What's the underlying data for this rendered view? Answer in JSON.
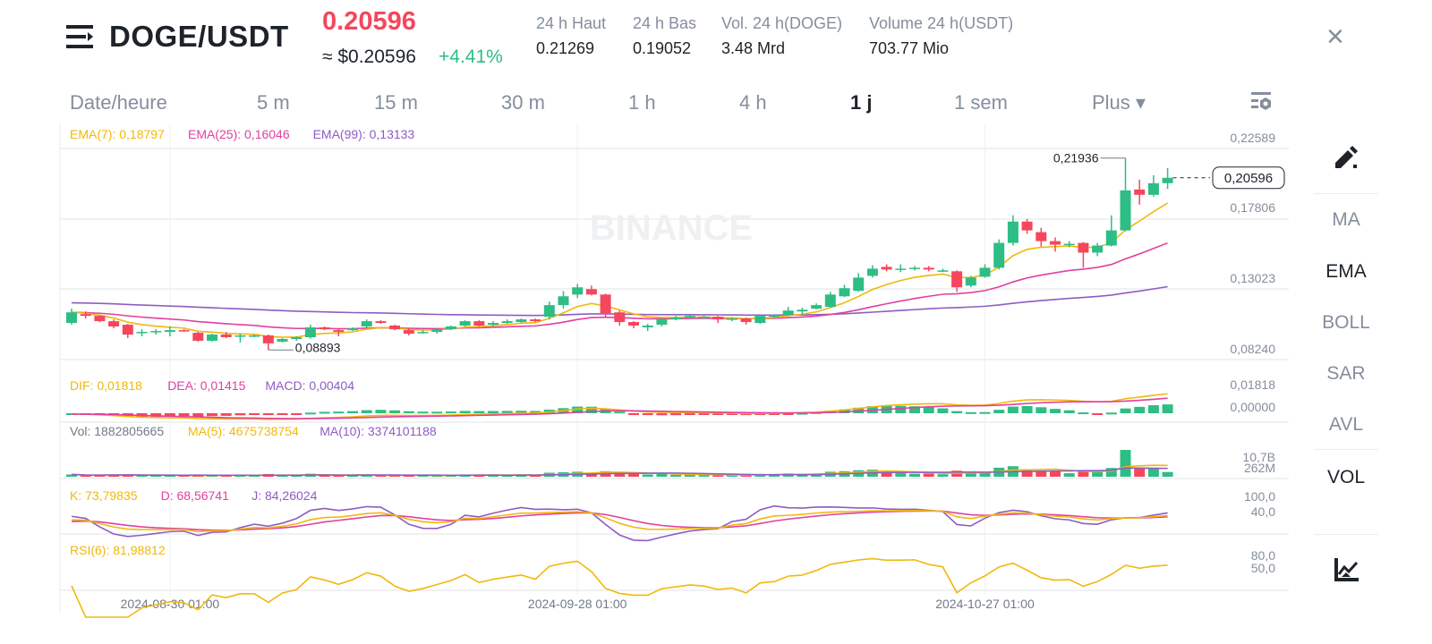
{
  "header": {
    "pair": "DOGE/USDT",
    "last_price": "0.20596",
    "usd_price": "≈ $0.20596",
    "change": "+4.41%",
    "stats": [
      {
        "label": "24 h Haut",
        "value": "0.21269"
      },
      {
        "label": "24 h Bas",
        "value": "0.19052"
      },
      {
        "label": "Vol. 24 h(DOGE)",
        "value": "3.48 Mrd"
      },
      {
        "label": "Volume 24 h(USDT)",
        "value": "703.77 Mio"
      }
    ],
    "close_icon": "×"
  },
  "timeframes": [
    {
      "label": "Date/heure"
    },
    {
      "label": "5 m"
    },
    {
      "label": "15 m"
    },
    {
      "label": "30 m"
    },
    {
      "label": "1 h"
    },
    {
      "label": "4 h"
    },
    {
      "label": "1 j",
      "active": true
    },
    {
      "label": "1 sem"
    },
    {
      "label": "Plus ▾"
    }
  ],
  "sidebar": {
    "items": [
      {
        "label": "MA"
      },
      {
        "label": "EMA",
        "active": true
      },
      {
        "label": "BOLL"
      },
      {
        "label": "SAR"
      },
      {
        "label": "AVL"
      },
      {
        "label": "VOL",
        "active": true
      }
    ]
  },
  "colors": {
    "up": "#2ebd85",
    "down": "#f6465d",
    "yellow": "#f0b90b",
    "pink": "#e040a0",
    "purple": "#8e5cc4",
    "grid": "#f0f1f3"
  },
  "chart_data": {
    "type": "candlestick",
    "watermark": "BINANCE",
    "main": {
      "legend": {
        "ema7": "EMA(7): 0,18797",
        "ema25": "EMA(25): 0,16046",
        "ema99": "EMA(99): 0,13133"
      },
      "y_ticks": [
        "0,22589",
        "0,17806",
        "0,13023",
        "0,08240"
      ],
      "y_range": [
        0.0824,
        0.22589
      ],
      "high_label": "0,21936",
      "low_label": "0,08893",
      "current_label": "0,20596"
    },
    "macd": {
      "legend": {
        "dif": "DIF: 0,01818",
        "dea": "DEA: 0,01415",
        "macd": "MACD: 0,00404"
      },
      "y_ticks": [
        "0,01818",
        "0,00000"
      ]
    },
    "vol": {
      "legend": {
        "vol": "Vol: 1882805665",
        "ma5": "MA(5): 4675738754",
        "ma10": "MA(10): 3374101188"
      },
      "y_ticks": [
        "10,7B",
        "262M"
      ]
    },
    "kdj": {
      "legend": {
        "k": "K: 73,79835",
        "d": "D: 68,56741",
        "j": "J: 84,26024"
      },
      "y_ticks": [
        "100,0",
        "40,0"
      ]
    },
    "rsi": {
      "legend": {
        "rsi": "RSI(6): 81,98812"
      },
      "y_ticks": [
        "80,0",
        "50,0"
      ]
    },
    "x_ticks": [
      {
        "label": "2024-08-30 01:00",
        "index": 7
      },
      {
        "label": "2024-09-28 01:00",
        "index": 36
      },
      {
        "label": "2024-10-27 01:00",
        "index": 65
      }
    ],
    "ohlc": [
      [
        0.1073,
        0.1145,
        0.117,
        0.1061
      ],
      [
        0.1133,
        0.1121,
        0.1151,
        0.1103
      ],
      [
        0.1121,
        0.1085,
        0.1127,
        0.1079
      ],
      [
        0.1085,
        0.1049,
        0.1097,
        0.1037
      ],
      [
        0.1061,
        0.0994,
        0.1067,
        0.097
      ],
      [
        0.1006,
        0.1012,
        0.103,
        0.0982
      ],
      [
        0.1012,
        0.1018,
        0.103,
        0.0994
      ],
      [
        0.1012,
        0.1024,
        0.1049,
        0.0982
      ],
      [
        0.1024,
        0.1018,
        0.103,
        0.1012
      ],
      [
        0.1006,
        0.0952,
        0.1012,
        0.0946
      ],
      [
        0.0952,
        0.0994,
        0.1,
        0.0946
      ],
      [
        0.0994,
        0.0976,
        0.1012,
        0.097
      ],
      [
        0.0982,
        0.0988,
        0.1,
        0.094
      ],
      [
        0.0982,
        0.0988,
        0.0994,
        0.0976
      ],
      [
        0.0988,
        0.0934,
        0.0994,
        0.08893
      ],
      [
        0.0946,
        0.0964,
        0.097,
        0.094
      ],
      [
        0.0964,
        0.0976,
        0.0982,
        0.0952
      ],
      [
        0.0976,
        0.1043,
        0.1061,
        0.0966
      ],
      [
        0.1043,
        0.103,
        0.1049,
        0.1024
      ],
      [
        0.1024,
        0.1012,
        0.1036,
        0.0982
      ],
      [
        0.1024,
        0.1036,
        0.1043,
        0.1018
      ],
      [
        0.1049,
        0.1085,
        0.1097,
        0.1043
      ],
      [
        0.1085,
        0.1073,
        0.1091,
        0.1067
      ],
      [
        0.1055,
        0.103,
        0.1061,
        0.1024
      ],
      [
        0.1024,
        0.1,
        0.1036,
        0.0988
      ],
      [
        0.1006,
        0.1012,
        0.1024,
        0.1
      ],
      [
        0.1012,
        0.103,
        0.1036,
        0.1
      ],
      [
        0.103,
        0.1049,
        0.1055,
        0.1024
      ],
      [
        0.1055,
        0.1085,
        0.1091,
        0.1049
      ],
      [
        0.1085,
        0.1055,
        0.1091,
        0.1049
      ],
      [
        0.1061,
        0.1073,
        0.1085,
        0.1049
      ],
      [
        0.1073,
        0.1085,
        0.1097,
        0.1067
      ],
      [
        0.1079,
        0.1097,
        0.1103,
        0.1073
      ],
      [
        0.1097,
        0.1085,
        0.1103,
        0.1079
      ],
      [
        0.1115,
        0.1194,
        0.1218,
        0.1097
      ],
      [
        0.1194,
        0.1254,
        0.129,
        0.117
      ],
      [
        0.1266,
        0.1315,
        0.1339,
        0.1242
      ],
      [
        0.1303,
        0.1266,
        0.1327,
        0.126
      ],
      [
        0.1266,
        0.1139,
        0.1272,
        0.1109
      ],
      [
        0.1145,
        0.1079,
        0.1157,
        0.1055
      ],
      [
        0.1079,
        0.1055,
        0.1085,
        0.1037
      ],
      [
        0.1043,
        0.1055,
        0.1067,
        0.1018
      ],
      [
        0.1061,
        0.1097,
        0.1109,
        0.1049
      ],
      [
        0.1097,
        0.1109,
        0.1121,
        0.1091
      ],
      [
        0.1109,
        0.1121,
        0.1127,
        0.1103
      ],
      [
        0.1109,
        0.1115,
        0.1121,
        0.1103
      ],
      [
        0.1115,
        0.1097,
        0.1121,
        0.1073
      ],
      [
        0.1097,
        0.1103,
        0.1109,
        0.1085
      ],
      [
        0.1103,
        0.1079,
        0.1109,
        0.1061
      ],
      [
        0.1073,
        0.1121,
        0.1127,
        0.1067
      ],
      [
        0.1115,
        0.1127,
        0.1133,
        0.1109
      ],
      [
        0.1127,
        0.1157,
        0.1182,
        0.1121
      ],
      [
        0.1151,
        0.1163,
        0.1176,
        0.1121
      ],
      [
        0.117,
        0.1194,
        0.1206,
        0.1164
      ],
      [
        0.1182,
        0.1266,
        0.1284,
        0.1176
      ],
      [
        0.1254,
        0.1309,
        0.1333,
        0.1248
      ],
      [
        0.1291,
        0.1381,
        0.1412,
        0.1284
      ],
      [
        0.1393,
        0.1442,
        0.1466,
        0.1381
      ],
      [
        0.1454,
        0.1436,
        0.1472,
        0.1424
      ],
      [
        0.1436,
        0.1442,
        0.1472,
        0.1418
      ],
      [
        0.1442,
        0.1448,
        0.146,
        0.143
      ],
      [
        0.1448,
        0.1436,
        0.146,
        0.1424
      ],
      [
        0.1424,
        0.143,
        0.1442,
        0.1418
      ],
      [
        0.1424,
        0.1315,
        0.143,
        0.1284
      ],
      [
        0.1327,
        0.1381,
        0.1393,
        0.1315
      ],
      [
        0.1387,
        0.1448,
        0.1472,
        0.1381
      ],
      [
        0.1448,
        0.1617,
        0.1641,
        0.1436
      ],
      [
        0.1617,
        0.1762,
        0.1805,
        0.1599
      ],
      [
        0.1762,
        0.1702,
        0.178,
        0.1678
      ],
      [
        0.169,
        0.1629,
        0.172,
        0.1593
      ],
      [
        0.1629,
        0.1605,
        0.1654,
        0.1557
      ],
      [
        0.1605,
        0.1611,
        0.1629,
        0.1587
      ],
      [
        0.1617,
        0.1551,
        0.1623,
        0.1448
      ],
      [
        0.1551,
        0.1599,
        0.1617,
        0.1527
      ],
      [
        0.1599,
        0.1702,
        0.1805,
        0.1593
      ],
      [
        0.1702,
        0.1974,
        0.21936,
        0.1696
      ],
      [
        0.198,
        0.1944,
        0.2047,
        0.1877
      ],
      [
        0.1944,
        0.2023,
        0.2077,
        0.1932
      ],
      [
        0.2023,
        0.20596,
        0.2125,
        0.1984
      ]
    ],
    "volume_b": [
      0.9,
      0.5,
      0.6,
      0.7,
      1.0,
      0.5,
      0.4,
      0.5,
      0.4,
      0.9,
      0.6,
      0.5,
      0.6,
      0.4,
      1.1,
      0.6,
      0.5,
      1.2,
      0.6,
      0.6,
      0.5,
      0.8,
      0.5,
      0.6,
      0.7,
      0.4,
      0.5,
      0.6,
      0.9,
      0.8,
      0.6,
      0.6,
      0.7,
      0.6,
      1.6,
      1.8,
      2.0,
      1.5,
      2.2,
      1.6,
      1.1,
      0.9,
      1.2,
      0.8,
      0.7,
      0.6,
      0.8,
      0.6,
      0.8,
      1.0,
      0.8,
      1.3,
      1.0,
      1.2,
      2.0,
      2.2,
      2.6,
      2.8,
      1.8,
      1.4,
      1.2,
      1.3,
      1.0,
      2.4,
      1.8,
      1.6,
      3.6,
      4.2,
      2.6,
      2.4,
      2.3,
      1.4,
      2.2,
      2.1,
      3.5,
      10.7,
      3.2,
      3.4,
      1.9
    ]
  }
}
